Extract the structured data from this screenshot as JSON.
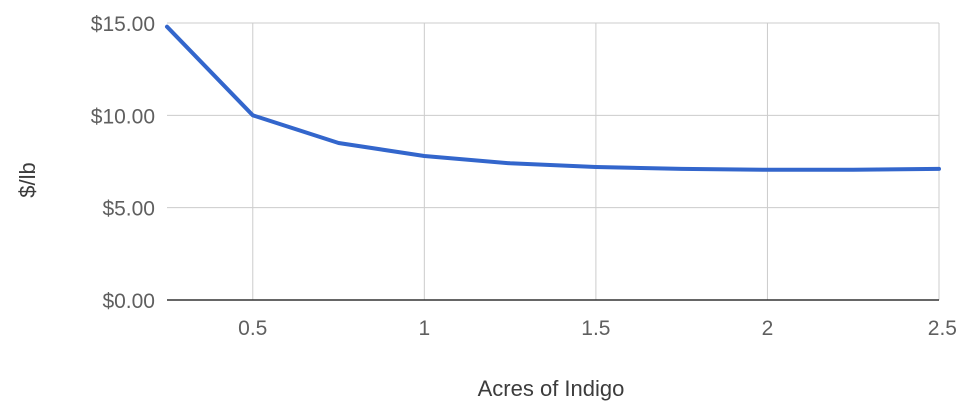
{
  "chart_data": {
    "type": "line",
    "title": "",
    "xlabel": "Acres of Indigo",
    "ylabel": "$/lb",
    "xlim": [
      0.25,
      2.5
    ],
    "ylim": [
      0,
      15
    ],
    "x_ticks": [
      0.5,
      1,
      1.5,
      2,
      2.5
    ],
    "x_tick_labels": [
      "0.5",
      "1",
      "1.5",
      "2",
      "2.5"
    ],
    "y_ticks": [
      0,
      5,
      10,
      15
    ],
    "y_tick_labels": [
      "$0.00",
      "$5.00",
      "$10.00",
      "$15.00"
    ],
    "grid": true,
    "legend": "none",
    "series": [
      {
        "color": "#3366cc",
        "x": [
          0.25,
          0.5,
          0.75,
          1,
          1.25,
          1.5,
          1.75,
          2,
          2.25,
          2.5
        ],
        "values": [
          14.8,
          10.0,
          8.5,
          7.8,
          7.4,
          7.2,
          7.1,
          7.05,
          7.05,
          7.1
        ]
      }
    ]
  }
}
